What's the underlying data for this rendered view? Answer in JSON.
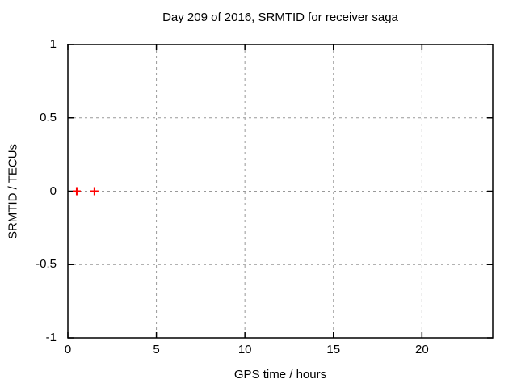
{
  "chart_data": {
    "type": "scatter",
    "title": "Day 209 of 2016, SRMTID for receiver saga",
    "xlabel": "GPS time / hours",
    "ylabel": "SRMTID / TECUs",
    "xlim": [
      0,
      24
    ],
    "ylim": [
      -1,
      1
    ],
    "xticks": [
      {
        "value": 0,
        "label": "0"
      },
      {
        "value": 5,
        "label": "5"
      },
      {
        "value": 10,
        "label": "10"
      },
      {
        "value": 15,
        "label": "15"
      },
      {
        "value": 20,
        "label": "20"
      }
    ],
    "yticks": [
      {
        "value": -1,
        "label": "-1"
      },
      {
        "value": -0.5,
        "label": "-0.5"
      },
      {
        "value": 0,
        "label": "0"
      },
      {
        "value": 0.5,
        "label": "0.5"
      },
      {
        "value": 1,
        "label": "1"
      }
    ],
    "grid": true,
    "legend_position": "none",
    "series": [
      {
        "name": "SRMTID",
        "marker": "plus",
        "color": "#ff0000",
        "points": [
          [
            0.5,
            0.0
          ],
          [
            1.5,
            0.0
          ]
        ]
      }
    ],
    "colors": {
      "background": "#ffffff",
      "border": "#000000",
      "grid": "#999999",
      "text": "#000000"
    }
  }
}
